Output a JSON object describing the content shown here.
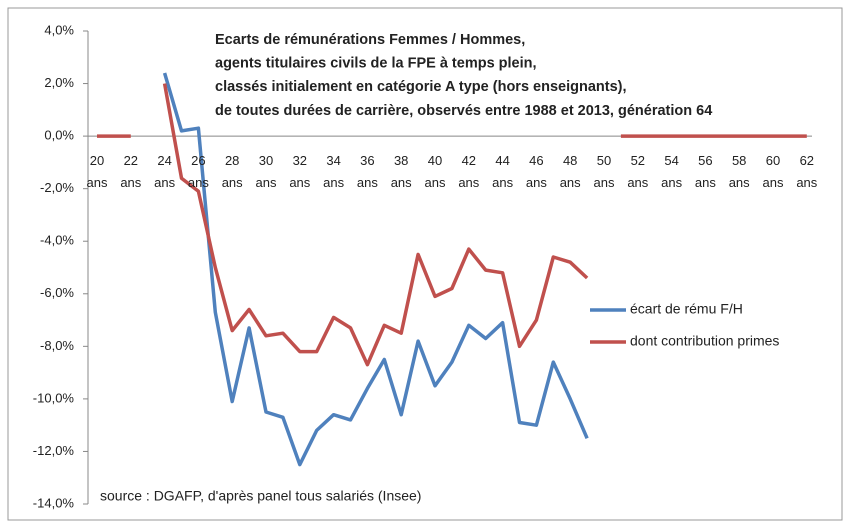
{
  "chart_data": {
    "type": "line",
    "title": [
      "Ecarts de rémunérations Femmes / Hommes,",
      "agents titulaires civils de la FPE à temps plein,",
      "classés initialement en catégorie A type (hors enseignants),",
      "de toutes durées de carrière, observés entre 1988 et 2013,  génération 64"
    ],
    "source": "source : DGAFP, d'après panel tous salariés (Insee)",
    "categories": [
      "20 ans",
      null,
      "22 ans",
      null,
      "24 ans",
      null,
      "26 ans",
      null,
      "28 ans",
      null,
      "30 ans",
      null,
      "32 ans",
      null,
      "34 ans",
      null,
      "36 ans",
      null,
      "38 ans",
      null,
      "40 ans",
      null,
      "42 ans",
      null,
      "44 ans",
      null,
      "46 ans",
      null,
      "48 ans",
      null,
      "50 ans",
      null,
      "52 ans",
      null,
      "54 ans",
      null,
      "56 ans",
      null,
      "58 ans",
      null,
      "60 ans",
      null,
      "62 ans"
    ],
    "series": [
      {
        "name": "écart de rému F/H",
        "color": "#4f81bd",
        "values": [
          null,
          null,
          null,
          null,
          2.4,
          0.2,
          0.3,
          -6.7,
          -10.1,
          -7.3,
          -10.5,
          -10.7,
          -12.5,
          -11.2,
          -10.6,
          -10.8,
          -9.6,
          -8.5,
          -10.6,
          -7.8,
          -9.5,
          -8.6,
          -7.2,
          -7.7,
          -7.1,
          -10.9,
          -11.0,
          -8.6,
          -10.0,
          -11.5,
          null,
          null,
          null,
          null,
          null,
          null,
          null,
          null,
          null,
          null,
          null,
          null,
          null
        ]
      },
      {
        "name": "dont contribution primes",
        "color": "#c0504d",
        "values": [
          0,
          0,
          0,
          null,
          2.0,
          -1.6,
          -2.1,
          -5.0,
          -7.4,
          -6.6,
          -7.6,
          -7.5,
          -8.2,
          -8.2,
          -6.9,
          -7.3,
          -8.7,
          -7.2,
          -7.5,
          -4.5,
          -6.1,
          -5.8,
          -4.3,
          -5.1,
          -5.2,
          -8.0,
          -7.0,
          -4.6,
          -4.8,
          -5.4,
          null,
          0,
          0,
          0,
          0,
          0,
          0,
          0,
          0,
          0,
          0,
          0,
          0
        ]
      }
    ],
    "ylim": [
      -14,
      4
    ],
    "yticks": [
      {
        "value": 4,
        "label": "4,0%"
      },
      {
        "value": 2,
        "label": "2,0%"
      },
      {
        "value": 0,
        "label": "0,0%"
      },
      {
        "value": -2,
        "label": "-2,0%"
      },
      {
        "value": -4,
        "label": "-4,0%"
      },
      {
        "value": -6,
        "label": "-6,0%"
      },
      {
        "value": -8,
        "label": "-8,0%"
      },
      {
        "value": -10,
        "label": "-10,0%"
      },
      {
        "value": -12,
        "label": "-12,0%"
      },
      {
        "value": -14,
        "label": "-14,0%"
      }
    ],
    "grid": false,
    "legend": "right"
  }
}
